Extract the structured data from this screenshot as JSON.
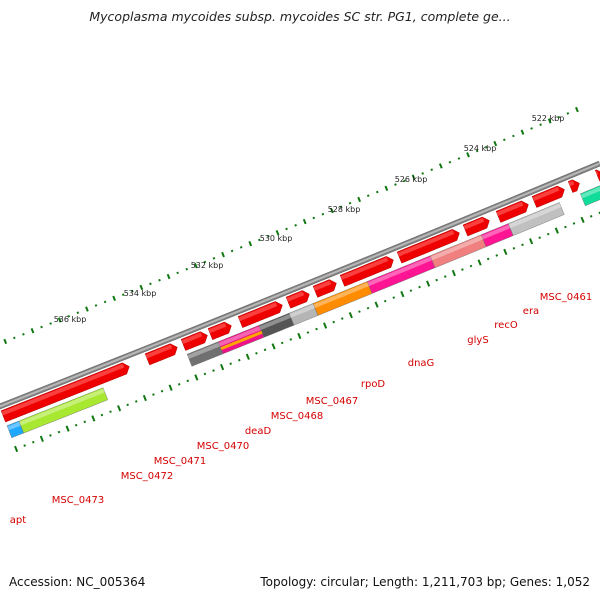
{
  "title": "Mycoplasma mycoides subsp. mycoides SC str. PG1, complete ge...",
  "footer": {
    "accession": "Accession: NC_005364",
    "summary": "Topology: circular; Length: 1,211,703 bp; Genes: 1,052"
  },
  "colors": {
    "forward_gene": "#ee0000",
    "backbone": "#808080",
    "tick": "#117711",
    "label": "#d40000"
  },
  "scale_ticks": [
    "522 kbp",
    "524 kbp",
    "526 kbp",
    "528 kbp",
    "530 kbp",
    "532 kbp",
    "534 kbp",
    "536 kbp"
  ],
  "gene_labels": [
    "MSC_0461",
    "era",
    "recO",
    "glyS",
    "dnaG",
    "rpoD",
    "MSC_0467",
    "MSC_0468",
    "deaD",
    "MSC_0470",
    "MSC_0471",
    "MSC_0472",
    "MSC_0473",
    "apt"
  ]
}
